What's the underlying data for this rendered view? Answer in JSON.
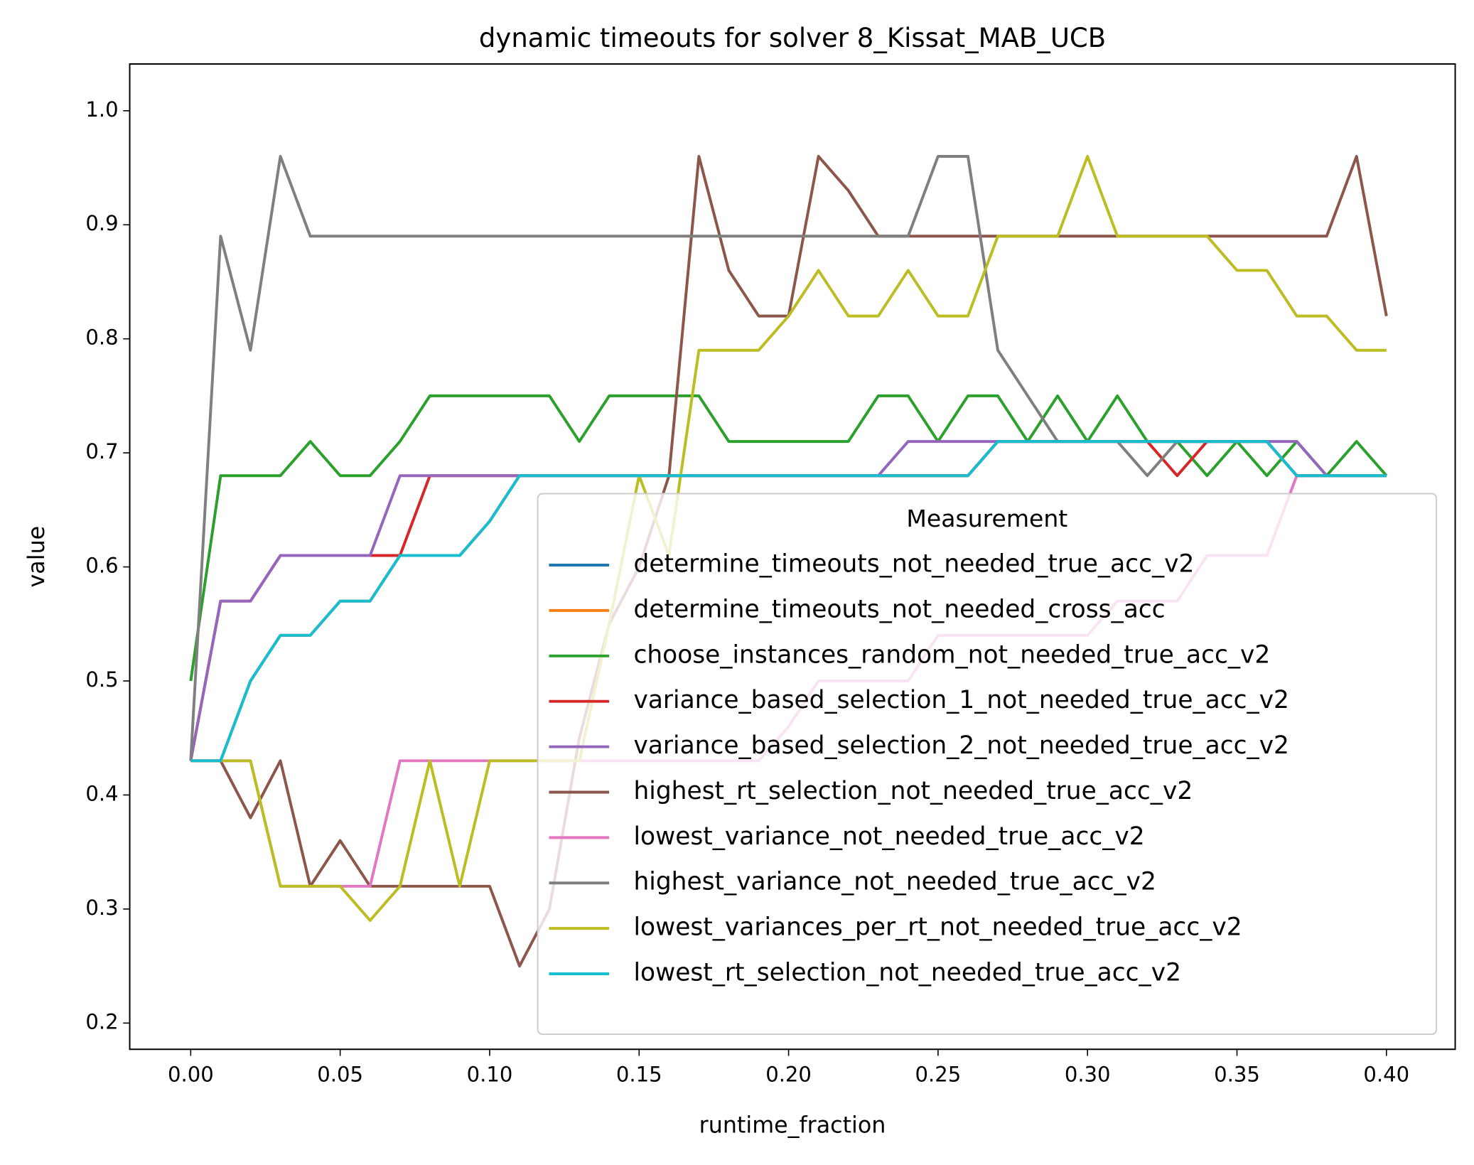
{
  "chart_data": {
    "type": "line",
    "title": "dynamic timeouts for solver 8_Kissat_MAB_UCB",
    "x_label": "runtime_fraction",
    "y_label": "value",
    "legend_title": "Measurement",
    "legend_loc": "lower right",
    "x": [
      0,
      0.01,
      0.02,
      0.03,
      0.04,
      0.05,
      0.06,
      0.07,
      0.08,
      0.09,
      0.1,
      0.11,
      0.12,
      0.13,
      0.14,
      0.15,
      0.16,
      0.17,
      0.18,
      0.19,
      0.2,
      0.21,
      0.22,
      0.23,
      0.24,
      0.25,
      0.26,
      0.27,
      0.28,
      0.29,
      0.3,
      0.31,
      0.32,
      0.33,
      0.34,
      0.35,
      0.36,
      0.37,
      0.38,
      0.39,
      0.4
    ],
    "xlim": [
      -0.0204,
      0.423
    ],
    "ylim": [
      0.177,
      1.041
    ],
    "xticks": [
      {
        "value": 0,
        "label": "0.00"
      },
      {
        "value": 0.05,
        "label": "0.05"
      },
      {
        "value": 0.1,
        "label": "0.10"
      },
      {
        "value": 0.15,
        "label": "0.15"
      },
      {
        "value": 0.2,
        "label": "0.20"
      },
      {
        "value": 0.25,
        "label": "0.25"
      },
      {
        "value": 0.3,
        "label": "0.30"
      },
      {
        "value": 0.35,
        "label": "0.35"
      },
      {
        "value": 0.4,
        "label": "0.40"
      }
    ],
    "yticks": [
      0.2,
      0.3,
      0.4,
      0.5,
      0.6,
      0.7,
      0.8,
      0.9,
      {
        "value": 1,
        "label": "1.0"
      }
    ],
    "series": [
      {
        "name": "determine_timeouts_not_needed_true_acc_v2",
        "color": "#1f77b4",
        "values": [
          0.43,
          0.43,
          0.5,
          0.54,
          0.54,
          0.57,
          0.57,
          0.61,
          0.61,
          0.61,
          0.64,
          0.68,
          0.68,
          0.68,
          0.68,
          0.68,
          0.68,
          0.68,
          0.68,
          0.68,
          0.68,
          0.68,
          0.68,
          0.68,
          0.68,
          0.68,
          0.68,
          0.71,
          0.71,
          0.71,
          0.71,
          0.71,
          0.71,
          0.71,
          0.71,
          0.71,
          0.71,
          0.68,
          0.68,
          0.68,
          0.68
        ]
      },
      {
        "name": "determine_timeouts_not_needed_cross_acc",
        "color": "#ff7f0e",
        "values": [
          0.43,
          0.43,
          0.5,
          0.54,
          0.54,
          0.57,
          0.57,
          0.61,
          0.61,
          0.61,
          0.64,
          0.68,
          0.68,
          0.68,
          0.68,
          0.68,
          0.68,
          0.68,
          0.68,
          0.68,
          0.68,
          0.68,
          0.68,
          0.68,
          0.68,
          0.68,
          0.68,
          0.71,
          0.71,
          0.71,
          0.71,
          0.71,
          0.71,
          0.71,
          0.71,
          0.71,
          0.71,
          0.68,
          0.68,
          0.68,
          0.68
        ]
      },
      {
        "name": "choose_instances_random_not_needed_true_acc_v2",
        "color": "#2ca02c",
        "values": [
          0.5,
          0.68,
          0.68,
          0.68,
          0.71,
          0.68,
          0.68,
          0.71,
          0.75,
          0.75,
          0.75,
          0.75,
          0.75,
          0.71,
          0.75,
          0.75,
          0.75,
          0.75,
          0.71,
          0.71,
          0.71,
          0.71,
          0.71,
          0.75,
          0.75,
          0.71,
          0.75,
          0.75,
          0.71,
          0.75,
          0.71,
          0.75,
          0.71,
          0.71,
          0.68,
          0.71,
          0.68,
          0.71,
          0.68,
          0.71,
          0.68
        ]
      },
      {
        "name": "variance_based_selection_1_not_needed_true_acc_v2",
        "color": "#d62728",
        "values": [
          0.43,
          0.57,
          0.57,
          0.61,
          0.61,
          0.61,
          0.61,
          0.61,
          0.68,
          0.68,
          0.68,
          0.68,
          0.68,
          0.68,
          0.68,
          0.68,
          0.68,
          0.68,
          0.68,
          0.68,
          0.68,
          0.68,
          0.68,
          0.68,
          0.68,
          0.68,
          0.68,
          0.71,
          0.71,
          0.71,
          0.71,
          0.71,
          0.71,
          0.68,
          0.71,
          0.71,
          0.71,
          0.68,
          0.68,
          0.68,
          0.68
        ]
      },
      {
        "name": "variance_based_selection_2_not_needed_true_acc_v2",
        "color": "#9467bd",
        "values": [
          0.43,
          0.57,
          0.57,
          0.61,
          0.61,
          0.61,
          0.61,
          0.68,
          0.68,
          0.68,
          0.68,
          0.68,
          0.68,
          0.68,
          0.68,
          0.68,
          0.68,
          0.68,
          0.68,
          0.68,
          0.68,
          0.68,
          0.68,
          0.68,
          0.71,
          0.71,
          0.71,
          0.71,
          0.71,
          0.71,
          0.71,
          0.71,
          0.71,
          0.71,
          0.71,
          0.71,
          0.71,
          0.71,
          0.68,
          0.68,
          0.68
        ]
      },
      {
        "name": "highest_rt_selection_not_needed_true_acc_v2",
        "color": "#8c564b",
        "values": [
          0.43,
          0.43,
          0.38,
          0.43,
          0.32,
          0.36,
          0.32,
          0.32,
          0.32,
          0.32,
          0.32,
          0.25,
          0.3,
          0.45,
          0.55,
          0.6,
          0.68,
          0.96,
          0.86,
          0.82,
          0.82,
          0.96,
          0.93,
          0.89,
          0.89,
          0.89,
          0.89,
          0.89,
          0.89,
          0.89,
          0.89,
          0.89,
          0.89,
          0.89,
          0.89,
          0.89,
          0.89,
          0.89,
          0.89,
          0.96,
          0.82
        ]
      },
      {
        "name": "lowest_variance_not_needed_true_acc_v2",
        "color": "#e377c2",
        "values": [
          0.43,
          0.43,
          0.43,
          0.32,
          0.32,
          0.32,
          0.32,
          0.43,
          0.43,
          0.43,
          0.43,
          0.43,
          0.43,
          0.43,
          0.43,
          0.43,
          0.43,
          0.43,
          0.43,
          0.43,
          0.46,
          0.5,
          0.5,
          0.5,
          0.5,
          0.54,
          0.54,
          0.54,
          0.54,
          0.54,
          0.54,
          0.57,
          0.57,
          0.57,
          0.61,
          0.61,
          0.61,
          0.68,
          0.68,
          0.68,
          0.68
        ]
      },
      {
        "name": "highest_variance_not_needed_true_acc_v2",
        "color": "#7f7f7f",
        "values": [
          0.43,
          0.89,
          0.79,
          0.96,
          0.89,
          0.89,
          0.89,
          0.89,
          0.89,
          0.89,
          0.89,
          0.89,
          0.89,
          0.89,
          0.89,
          0.89,
          0.89,
          0.89,
          0.89,
          0.89,
          0.89,
          0.89,
          0.89,
          0.89,
          0.89,
          0.96,
          0.96,
          0.79,
          0.75,
          0.71,
          0.71,
          0.71,
          0.68,
          0.71,
          0.71,
          0.71,
          0.71,
          0.68,
          0.68,
          0.68,
          0.68
        ]
      },
      {
        "name": "lowest_variances_per_rt_not_needed_true_acc_v2",
        "color": "#bcbd22",
        "values": [
          0.43,
          0.43,
          0.43,
          0.32,
          0.32,
          0.32,
          0.29,
          0.32,
          0.43,
          0.32,
          0.43,
          0.43,
          0.43,
          0.43,
          0.55,
          0.68,
          0.61,
          0.79,
          0.79,
          0.79,
          0.82,
          0.86,
          0.82,
          0.82,
          0.86,
          0.82,
          0.82,
          0.89,
          0.89,
          0.89,
          0.96,
          0.89,
          0.89,
          0.89,
          0.89,
          0.86,
          0.86,
          0.82,
          0.82,
          0.79,
          0.79
        ]
      },
      {
        "name": "lowest_rt_selection_not_needed_true_acc_v2",
        "color": "#17becf",
        "values": [
          0.43,
          0.43,
          0.5,
          0.54,
          0.54,
          0.57,
          0.57,
          0.61,
          0.61,
          0.61,
          0.64,
          0.68,
          0.68,
          0.68,
          0.68,
          0.68,
          0.68,
          0.68,
          0.68,
          0.68,
          0.68,
          0.68,
          0.68,
          0.68,
          0.68,
          0.68,
          0.68,
          0.71,
          0.71,
          0.71,
          0.71,
          0.71,
          0.71,
          0.71,
          0.71,
          0.71,
          0.71,
          0.68,
          0.68,
          0.68,
          0.68
        ]
      }
    ]
  }
}
